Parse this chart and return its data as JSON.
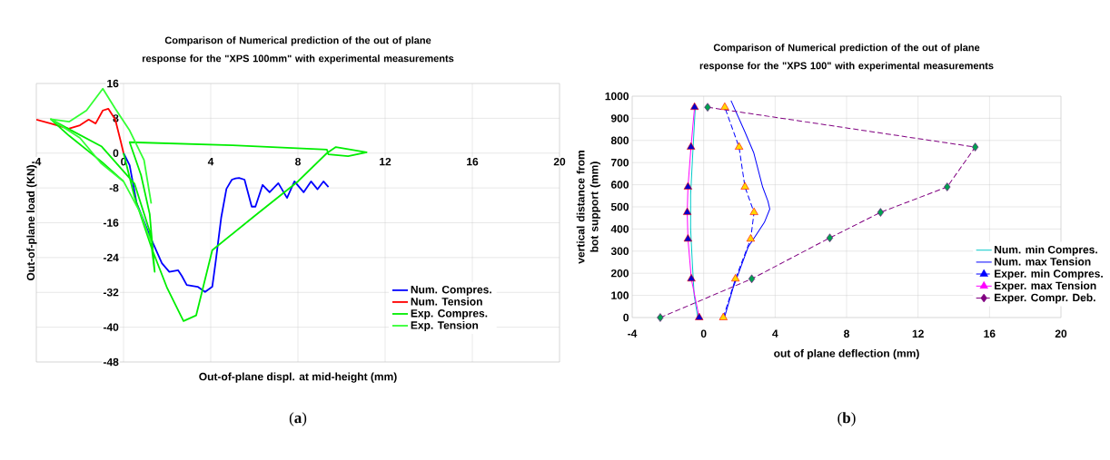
{
  "chart_data": [
    {
      "type": "line",
      "title": "Comparison of Numerical prediction of the out of plane response for the \"XPS 100mm\" with experimental measurements",
      "xlabel": "Out-of-plane displ. at mid-height (mm)",
      "ylabel": "Out-of-plane load (KN)",
      "annotations": [
        "(**a**)"
      ],
      "xlim": [
        -4,
        20
      ],
      "ylim": [
        -48,
        16
      ],
      "xticks": [
        -4,
        0,
        4,
        8,
        12,
        16,
        20
      ],
      "yticks": [
        -48,
        -40,
        -32,
        -24,
        -16,
        -8,
        0,
        8,
        16
      ],
      "grid": true,
      "legend": "bottom right",
      "series": [
        {
          "name": "Num. Compres.",
          "color": "#0000ff",
          "x": [
            0,
            0.28,
            0.6,
            1.27,
            1.76,
            2.1,
            2.5,
            2.67,
            2.9,
            3.4,
            3.74,
            4.07,
            4.23,
            4.48,
            4.72,
            4.97,
            5.14,
            5.3,
            5.55,
            5.88,
            6.05,
            6.38,
            6.7,
            7.1,
            7.5,
            7.84,
            8.26,
            8.6,
            8.9,
            9.17,
            9.4
          ],
          "values": [
            0,
            -2.8,
            -11.5,
            -19.8,
            -25.3,
            -27.3,
            -26.9,
            -28.2,
            -30.3,
            -30.7,
            -31.9,
            -30.7,
            -24.8,
            -14.8,
            -8.2,
            -6.1,
            -5.8,
            -5.7,
            -6.1,
            -12.3,
            -12.3,
            -7.3,
            -9,
            -6.9,
            -10.3,
            -6.5,
            -9,
            -6.5,
            -8.3,
            -6.5,
            -7.8
          ]
        },
        {
          "name": "Num. Tension",
          "color": "#ff0000",
          "x": [
            -4,
            -3.34,
            -2.52,
            -2,
            -1.6,
            -1.28,
            -0.95,
            -0.7,
            -0.38,
            -0.13,
            0
          ],
          "values": [
            7.7,
            6.8,
            5.6,
            6.4,
            7.7,
            6.8,
            9.8,
            10.2,
            7.7,
            2.7,
            0
          ]
        },
        {
          "name": "Exp. Compres.",
          "color": "#00ee00",
          "x": [
            0,
            0.5,
            1.3,
            2,
            2.75,
            3.33,
            4.07,
            6,
            8,
            9.33,
            9.74,
            11.15,
            10.3,
            9.4,
            9.33,
            5,
            0.28,
            0.8,
            1.2,
            1.43,
            1.2,
            0.5,
            -1,
            -2.5,
            -3.34,
            -2.5,
            -1,
            0
          ],
          "values": [
            0,
            -10,
            -22,
            -31,
            -38.6,
            -37.3,
            -22.3,
            -14.5,
            -6.5,
            0,
            1.4,
            0.2,
            -0.7,
            -0.3,
            0.8,
            1.8,
            2.5,
            -5,
            -14,
            -27.3,
            -18,
            -7,
            1.5,
            5.5,
            7.8,
            4,
            -2,
            -6.5
          ]
        },
        {
          "name": "Exp. Tension",
          "color": "#33ff33",
          "x": [
            1.27,
            0.94,
            0.28,
            -0.38,
            -0.95,
            -1.7,
            -2.5,
            -3.34,
            -2,
            -1.04,
            0,
            0.8,
            1.27
          ],
          "values": [
            -11.6,
            -1.6,
            5.2,
            10.2,
            14.8,
            9.8,
            7.2,
            7.8,
            3.5,
            -2.3,
            -6.5,
            -14,
            -20.7
          ]
        }
      ]
    },
    {
      "type": "line",
      "title": "Comparison of Numerical prediction of the out of plane response for the \"XPS 100\" with experimental measurements",
      "xlabel": "out of plane deflection (mm)",
      "ylabel": "vertical distance from bot support (mm)",
      "annotations": [
        "(**b**)"
      ],
      "xlim": [
        -4,
        20
      ],
      "ylim": [
        0,
        1000
      ],
      "xticks": [
        -4,
        0,
        4,
        8,
        12,
        16,
        20
      ],
      "yticks": [
        0,
        100,
        200,
        300,
        400,
        500,
        600,
        700,
        800,
        900,
        1000
      ],
      "grid": true,
      "legend": "right",
      "series": [
        {
          "name": "Num. min Compres.",
          "color": "#00c8c8",
          "x": [
            -0.33,
            -0.53,
            -0.63,
            -0.73,
            -0.73,
            -0.63,
            -0.47
          ],
          "values": [
            0,
            100,
            240,
            400,
            555,
            712,
            947
          ]
        },
        {
          "name": "Num. max Tension",
          "color": "#0000ff",
          "x": [
            1.18,
            1.63,
            2.5,
            3.4,
            3.7,
            3.6,
            3.3,
            2.8,
            2.3,
            1.53
          ],
          "values": [
            5,
            130,
            320,
            430,
            490,
            525,
            590,
            745,
            840,
            980
          ]
        },
        {
          "name": "Exper. min Compres.",
          "color": "#0000ff",
          "line_style": "dashed",
          "marker": "triangle",
          "colors": [
            "#ffd700",
            "#ffd700",
            "#ffd700",
            "#ffd700",
            "#ffd700",
            "#ffd700",
            "#ffd700"
          ],
          "x": [
            1.1,
            1.78,
            2.63,
            2.82,
            2.31,
            1.98,
            1.18
          ],
          "values": [
            0,
            175,
            355,
            475,
            590,
            770,
            950
          ]
        },
        {
          "name": "Exper. max Tension",
          "color": "#ff00ff",
          "marker": "triangle",
          "colors": [
            "#0000cc",
            "#0000cc",
            "#0000cc",
            "#0000cc",
            "#0000cc",
            "#0000cc",
            "#0000cc"
          ],
          "x": [
            -0.25,
            -0.69,
            -0.88,
            -0.92,
            -0.88,
            -0.71,
            -0.51
          ],
          "values": [
            0,
            175,
            355,
            475,
            590,
            770,
            950
          ]
        },
        {
          "name": "Exper. Compr. Deb.",
          "color": "#800080",
          "line_style": "dashed",
          "marker": "diamond",
          "colors": [
            "#00a050",
            "#00a050",
            "#00a050",
            "#00a050",
            "#00a050",
            "#00a050",
            "#00a050"
          ],
          "x": [
            -2.43,
            2.69,
            7.06,
            9.9,
            13.63,
            15.2,
            0.22
          ],
          "values": [
            0,
            175,
            360,
            475,
            590,
            770,
            950
          ]
        }
      ]
    }
  ]
}
